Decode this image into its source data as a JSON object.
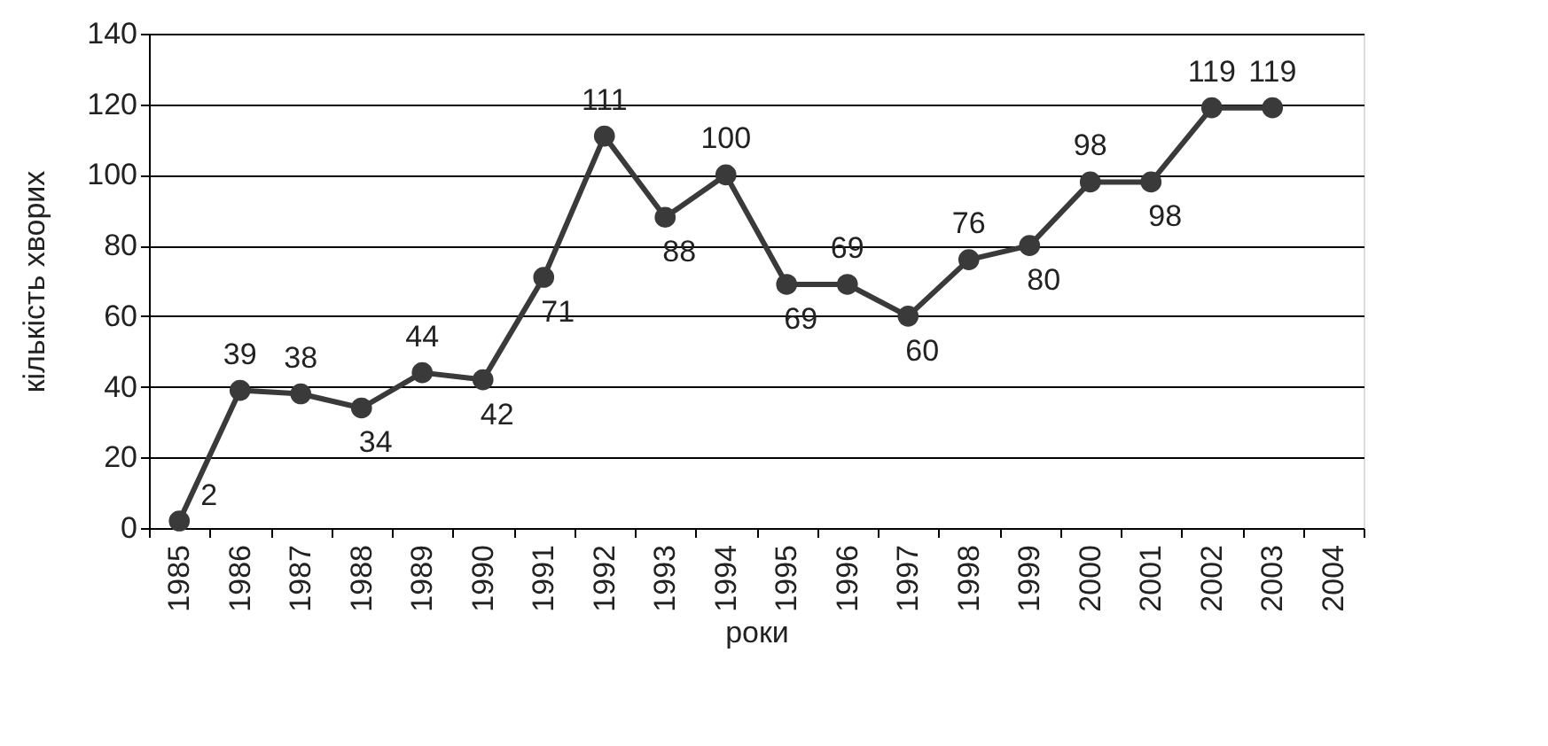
{
  "chart_data": {
    "type": "line",
    "xlabel": "роки",
    "ylabel": "кількість хворих",
    "categories": [
      "1985",
      "1986",
      "1987",
      "1988",
      "1989",
      "1990",
      "1991",
      "1992",
      "1993",
      "1994",
      "1995",
      "1996",
      "1997",
      "1998",
      "1999",
      "2000",
      "2001",
      "2002",
      "2003",
      "2004"
    ],
    "series": [
      {
        "color": "#3a3a3a",
        "values": [
          2,
          39,
          38,
          34,
          44,
          42,
          71,
          111,
          88,
          100,
          69,
          69,
          60,
          76,
          80,
          98,
          98,
          119,
          119,
          null
        ]
      }
    ],
    "ylim": [
      0,
      140
    ],
    "yticks": [
      0,
      20,
      40,
      60,
      80,
      100,
      120,
      140
    ],
    "grid": "y",
    "marker": "circle",
    "line_style": "solid",
    "data_labels": true
  }
}
